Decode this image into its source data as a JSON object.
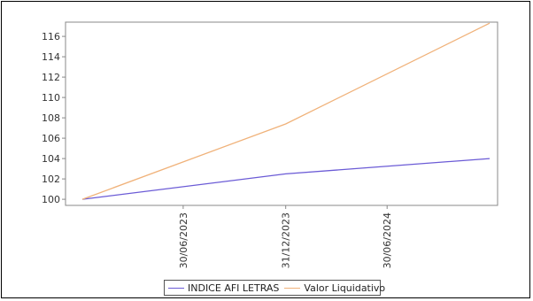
{
  "chart_data": {
    "type": "line",
    "title": "",
    "xlabel": "",
    "ylabel": "",
    "x": [
      "31/12/2022",
      "31/12/2023",
      "31/12/2024"
    ],
    "x_tick_labels": [
      "30/06/2023",
      "31/12/2023",
      "30/06/2024"
    ],
    "ylim": [
      99.4,
      117.4
    ],
    "y_ticks": [
      100,
      102,
      104,
      106,
      108,
      110,
      112,
      114,
      116
    ],
    "grid": false,
    "legend_position": "bottom",
    "series": [
      {
        "name": "INDICE AFI LETRAS",
        "color": "#6b5bd6",
        "values": [
          100.0,
          102.5,
          104.0
        ]
      },
      {
        "name": "Valor Liquidativo",
        "color": "#f0b27a",
        "values": [
          100.0,
          107.4,
          117.3
        ]
      }
    ]
  }
}
